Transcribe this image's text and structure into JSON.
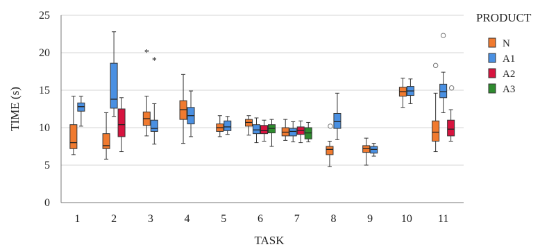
{
  "chart_data": {
    "type": "boxplot",
    "xlabel": "TASK",
    "ylabel": "TIME (s)",
    "ylim": [
      0,
      25
    ],
    "yticks": [
      0,
      5,
      10,
      15,
      20,
      25
    ],
    "grid": true,
    "legend": {
      "title": "PRODUCT",
      "placement": "right",
      "entries": [
        {
          "name": "N",
          "color": "#f07a2f"
        },
        {
          "name": "A1",
          "color": "#4a90e2"
        },
        {
          "name": "A2",
          "color": "#d7143f"
        },
        {
          "name": "A3",
          "color": "#2e8b2e"
        }
      ]
    },
    "categories": [
      "1",
      "2",
      "3",
      "4",
      "5",
      "6",
      "7",
      "8",
      "9",
      "10",
      "11"
    ],
    "boxes": [
      {
        "task": "1",
        "series": "N",
        "whislo": 6.4,
        "q1": 7.2,
        "med": 8.0,
        "q3": 10.4,
        "whishi": 14.2,
        "outliers": [],
        "extremes": []
      },
      {
        "task": "1",
        "series": "A1",
        "whislo": 10.2,
        "q1": 12.2,
        "med": 12.8,
        "q3": 13.3,
        "whishi": 14.2,
        "outliers": [],
        "extremes": []
      },
      {
        "task": "2",
        "series": "N",
        "whislo": 5.8,
        "q1": 7.2,
        "med": 7.6,
        "q3": 9.2,
        "whishi": 12.0,
        "outliers": [],
        "extremes": []
      },
      {
        "task": "2",
        "series": "A1",
        "whislo": 11.5,
        "q1": 12.6,
        "med": 13.8,
        "q3": 18.6,
        "whishi": 22.8,
        "outliers": [],
        "extremes": []
      },
      {
        "task": "2",
        "series": "A2",
        "whislo": 6.8,
        "q1": 8.8,
        "med": 10.4,
        "q3": 12.5,
        "whishi": 14.0,
        "outliers": [],
        "extremes": []
      },
      {
        "task": "3",
        "series": "N",
        "whislo": 8.9,
        "q1": 10.3,
        "med": 11.2,
        "q3": 12.1,
        "whishi": 14.2,
        "outliers": [],
        "extremes": [
          20.2
        ]
      },
      {
        "task": "3",
        "series": "A1",
        "whislo": 7.8,
        "q1": 9.5,
        "med": 9.9,
        "q3": 11.0,
        "whishi": 13.2,
        "outliers": [],
        "extremes": [
          19.1
        ]
      },
      {
        "task": "4",
        "series": "N",
        "whislo": 7.9,
        "q1": 11.1,
        "med": 12.4,
        "q3": 13.6,
        "whishi": 17.1,
        "outliers": [],
        "extremes": []
      },
      {
        "task": "4",
        "series": "A1",
        "whislo": 8.8,
        "q1": 10.5,
        "med": 11.6,
        "q3": 12.7,
        "whishi": 14.9,
        "outliers": [],
        "extremes": []
      },
      {
        "task": "5",
        "series": "N",
        "whislo": 8.8,
        "q1": 9.5,
        "med": 10.0,
        "q3": 10.5,
        "whishi": 11.6,
        "outliers": [],
        "extremes": []
      },
      {
        "task": "5",
        "series": "A1",
        "whislo": 9.1,
        "q1": 9.6,
        "med": 10.1,
        "q3": 10.9,
        "whishi": 11.5,
        "outliers": [],
        "extremes": []
      },
      {
        "task": "6",
        "series": "N",
        "whislo": 9.0,
        "q1": 10.2,
        "med": 10.7,
        "q3": 11.1,
        "whishi": 11.6,
        "outliers": [],
        "extremes": []
      },
      {
        "task": "6",
        "series": "A1",
        "whislo": 8.0,
        "q1": 9.2,
        "med": 9.7,
        "q3": 10.4,
        "whishi": 11.3,
        "outliers": [],
        "extremes": []
      },
      {
        "task": "6",
        "series": "A2",
        "whislo": 8.2,
        "q1": 9.2,
        "med": 9.6,
        "q3": 10.3,
        "whishi": 11.0,
        "outliers": [],
        "extremes": []
      },
      {
        "task": "6",
        "series": "A3",
        "whislo": 7.5,
        "q1": 9.3,
        "med": 9.9,
        "q3": 10.4,
        "whishi": 11.1,
        "outliers": [],
        "extremes": []
      },
      {
        "task": "7",
        "series": "N",
        "whislo": 8.3,
        "q1": 8.9,
        "med": 9.4,
        "q3": 10.0,
        "whishi": 11.1,
        "outliers": [],
        "extremes": []
      },
      {
        "task": "7",
        "series": "A1",
        "whislo": 8.1,
        "q1": 8.9,
        "med": 9.5,
        "q3": 9.9,
        "whishi": 10.8,
        "outliers": [],
        "extremes": []
      },
      {
        "task": "7",
        "series": "A2",
        "whislo": 8.0,
        "q1": 9.1,
        "med": 9.6,
        "q3": 10.1,
        "whishi": 10.9,
        "outliers": [],
        "extremes": []
      },
      {
        "task": "7",
        "series": "A3",
        "whislo": 8.1,
        "q1": 8.5,
        "med": 9.3,
        "q3": 10.0,
        "whishi": 10.7,
        "outliers": [],
        "extremes": []
      },
      {
        "task": "8",
        "series": "N",
        "whislo": 4.8,
        "q1": 6.4,
        "med": 7.1,
        "q3": 7.5,
        "whishi": 8.2,
        "outliers": [
          10.2
        ],
        "extremes": []
      },
      {
        "task": "8",
        "series": "A1",
        "whislo": 8.4,
        "q1": 9.9,
        "med": 10.8,
        "q3": 11.9,
        "whishi": 14.6,
        "outliers": [],
        "extremes": []
      },
      {
        "task": "9",
        "series": "N",
        "whislo": 5.0,
        "q1": 6.7,
        "med": 7.2,
        "q3": 7.6,
        "whishi": 8.6,
        "outliers": [],
        "extremes": []
      },
      {
        "task": "9",
        "series": "A1",
        "whislo": 6.2,
        "q1": 6.6,
        "med": 7.1,
        "q3": 7.5,
        "whishi": 7.9,
        "outliers": [],
        "extremes": []
      },
      {
        "task": "10",
        "series": "N",
        "whislo": 12.7,
        "q1": 14.2,
        "med": 14.8,
        "q3": 15.4,
        "whishi": 16.6,
        "outliers": [],
        "extremes": []
      },
      {
        "task": "10",
        "series": "A1",
        "whislo": 13.2,
        "q1": 14.3,
        "med": 14.9,
        "q3": 15.5,
        "whishi": 16.5,
        "outliers": [],
        "extremes": []
      },
      {
        "task": "11",
        "series": "N",
        "whislo": 6.8,
        "q1": 8.2,
        "med": 9.4,
        "q3": 10.9,
        "whishi": 14.6,
        "outliers": [
          18.3
        ],
        "extremes": []
      },
      {
        "task": "11",
        "series": "A1",
        "whislo": 12.0,
        "q1": 14.0,
        "med": 14.8,
        "q3": 15.8,
        "whishi": 17.4,
        "outliers": [
          22.3,
          15.3
        ],
        "extremes": []
      },
      {
        "task": "11",
        "series": "A2",
        "whislo": 8.2,
        "q1": 8.9,
        "med": 9.8,
        "q3": 11.0,
        "whishi": 12.4,
        "outliers": [],
        "extremes": []
      }
    ]
  }
}
